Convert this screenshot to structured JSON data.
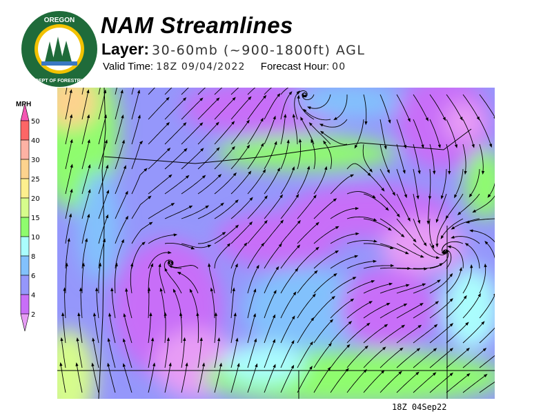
{
  "logo": {
    "text": "OREGON DEPARTMENT OF FORESTRY",
    "colors": {
      "ring": "#1f6b3a",
      "gold": "#f2c200"
    }
  },
  "header": {
    "title": "NAM Streamlines",
    "layer_label": "Layer:",
    "layer_value": "30-60mb (~900-1800ft) AGL",
    "valid_time_label": "Valid Time:",
    "valid_time_value": "18Z 09/04/2022",
    "forecast_hour_label": "Forecast Hour:",
    "forecast_hour_value": "00"
  },
  "legend": {
    "unit": "MPH",
    "levels": [
      "2",
      "4",
      "6",
      "8",
      "10",
      "15",
      "20",
      "25",
      "30",
      "40",
      "50"
    ],
    "colors": [
      "#e79cf5",
      "#c86ef8",
      "#9597fb",
      "#82c1fc",
      "#aafdfd",
      "#8ffc6e",
      "#d6fc8c",
      "#fdef8e",
      "#fdd38e",
      "#fdb2a4",
      "#fc6666",
      "#f456b3"
    ]
  },
  "timestamp": "18Z 04Sep22"
}
